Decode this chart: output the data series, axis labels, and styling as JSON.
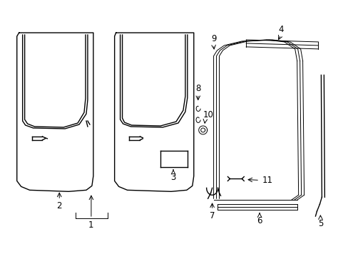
{
  "background_color": "#ffffff",
  "line_color": "#000000",
  "lw": 1.0,
  "tlw": 0.7,
  "fs": 8.5,
  "figsize": [
    4.89,
    3.6
  ],
  "dpi": 100
}
